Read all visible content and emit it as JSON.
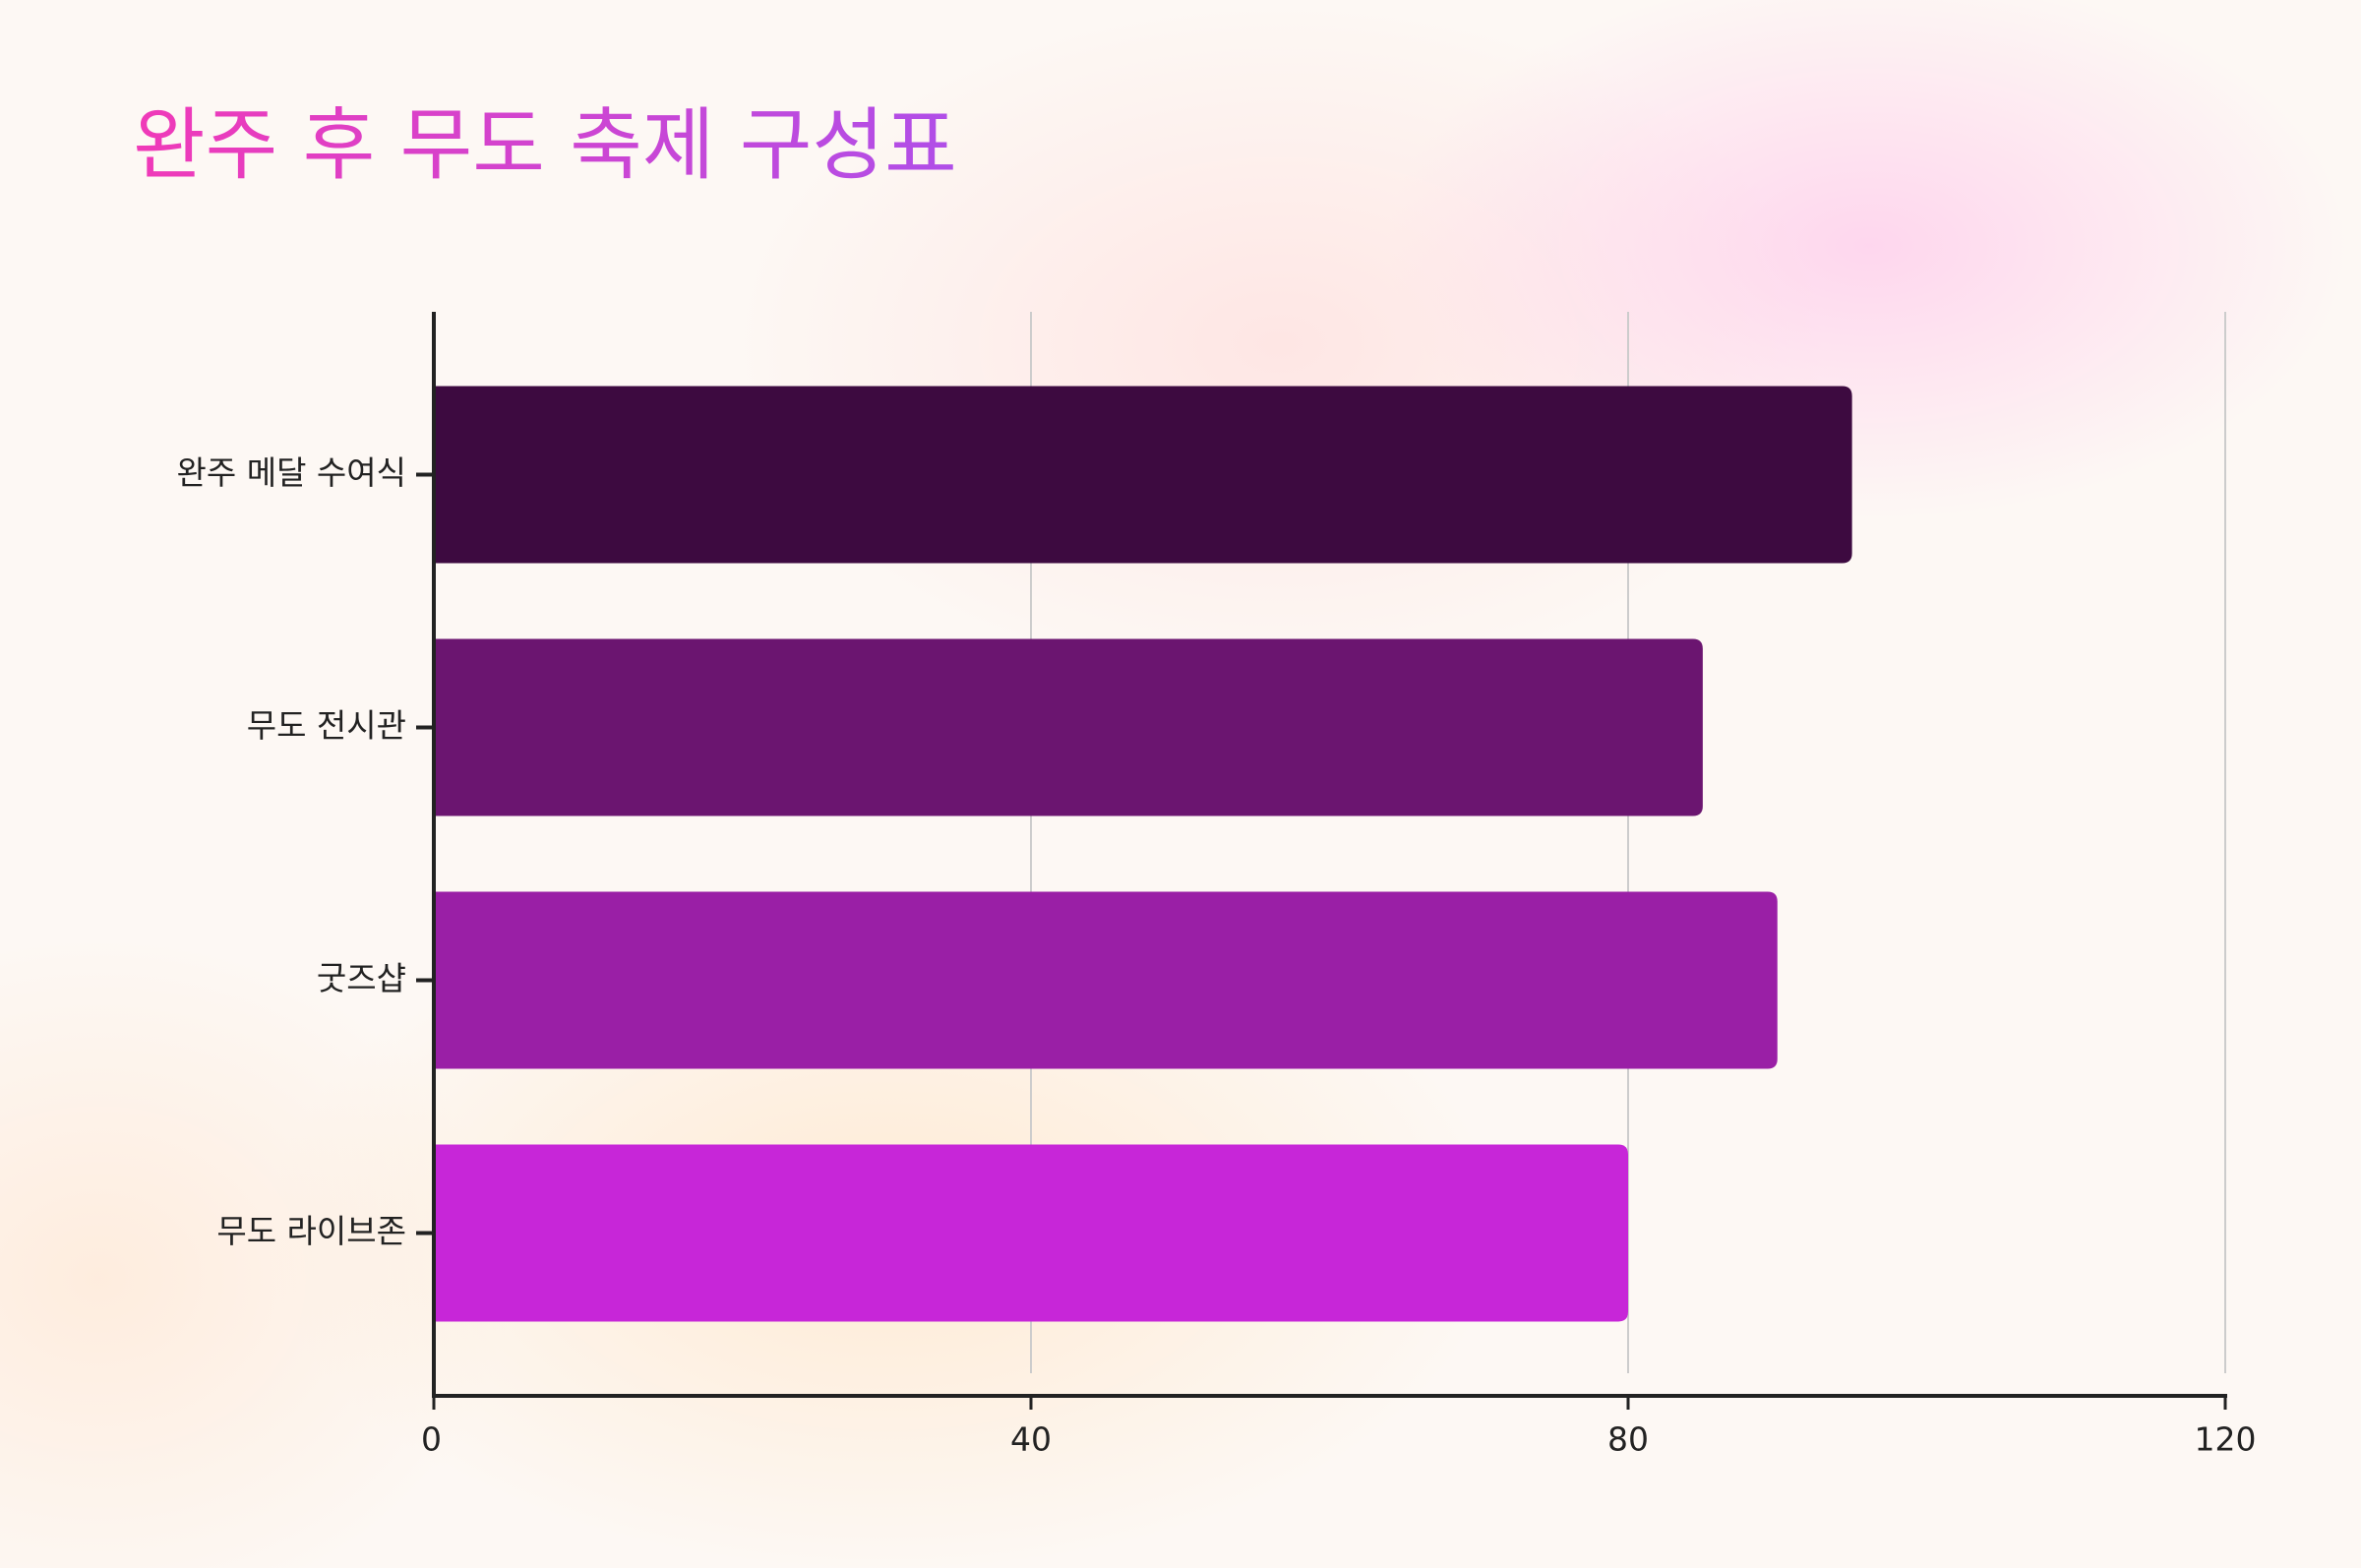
{
  "chart_data": {
    "type": "bar",
    "orientation": "horizontal",
    "title": "완주 후 무도 축제 구성표",
    "categories": [
      "완주 메달 수여식",
      "무도 전시관",
      "굿즈샵",
      "무도 라이브존"
    ],
    "values": [
      95,
      85,
      90,
      80
    ],
    "colors": [
      "#3d0a40",
      "#6b1570",
      "#9a1fa6",
      "#c726d8"
    ],
    "xlim": [
      0,
      120
    ],
    "xticks": [
      0,
      40,
      80,
      120
    ],
    "grid": true
  }
}
